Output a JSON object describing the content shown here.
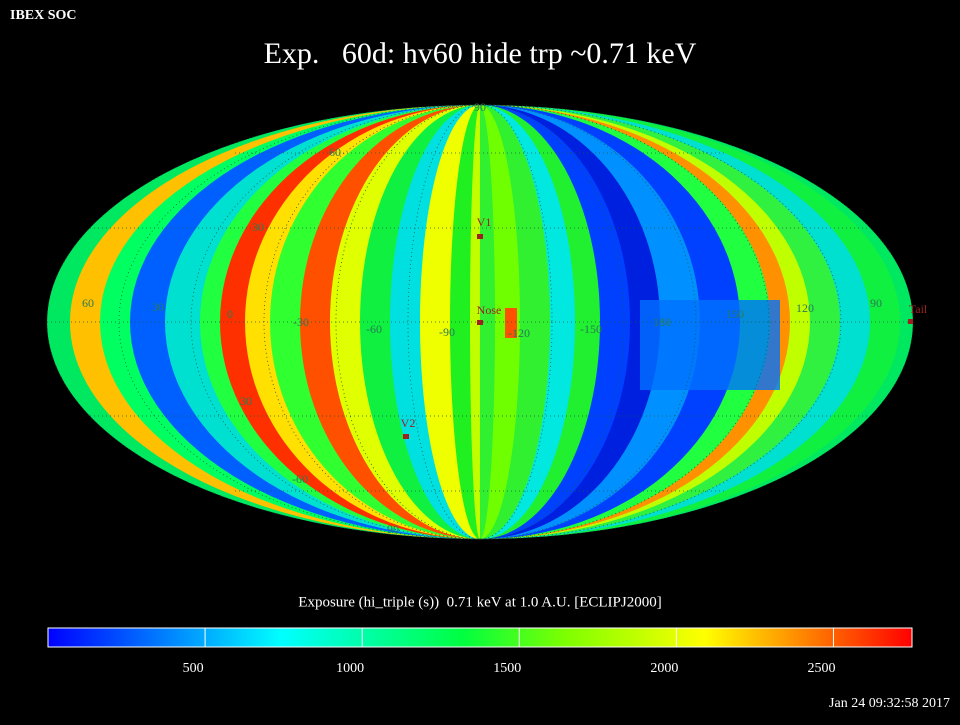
{
  "header": {
    "source": "IBEX SOC",
    "title": "Exp.   60d: hv60 hide trp ~0.71 keV"
  },
  "map": {
    "latitude_labels": [
      "90",
      "60",
      "30",
      "30",
      "-60",
      "90"
    ],
    "longitude_labels": [
      "60",
      "30",
      "0",
      "-30",
      "-60",
      "-90",
      "-120",
      "-150",
      "180",
      "150",
      "120",
      "90"
    ],
    "objects": [
      "V1",
      "Nose",
      "V2",
      "Tail"
    ]
  },
  "colorbar": {
    "label": "Exposure (hi_triple (s))  0.71 keV at 1.0 A.U. [ECLIPJ2000]",
    "range": [
      0,
      2750
    ],
    "ticks": [
      500,
      1000,
      1500,
      2000,
      2500
    ]
  },
  "footer": {
    "timestamp": "Jan 24 09:32:58 2017"
  }
}
